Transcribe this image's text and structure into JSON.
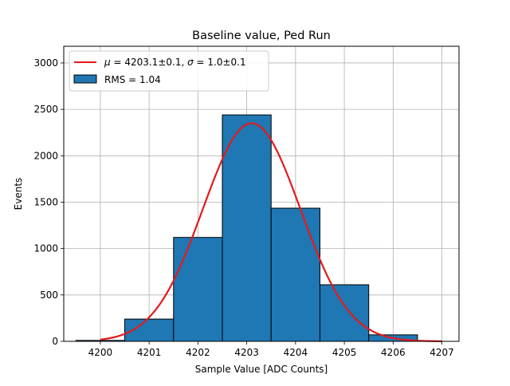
{
  "chart_data": {
    "type": "bar",
    "title": "Baseline value, Ped Run",
    "xlabel": "Sample Value [ADC Counts]",
    "ylabel": "Events",
    "xlim": [
      4199.25,
      4207.35
    ],
    "ylim": [
      0,
      3180
    ],
    "grid": true,
    "x_ticks": [
      4200,
      4201,
      4202,
      4203,
      4204,
      4205,
      4206,
      4207
    ],
    "y_ticks": [
      0,
      500,
      1000,
      1500,
      2000,
      2500,
      3000
    ],
    "bins": [
      {
        "left": 4199.5,
        "right": 4200.5,
        "value": 10
      },
      {
        "left": 4200.5,
        "right": 4201.5,
        "value": 240
      },
      {
        "left": 4201.5,
        "right": 4202.5,
        "value": 1120
      },
      {
        "left": 4202.5,
        "right": 4203.5,
        "value": 2440
      },
      {
        "left": 4203.5,
        "right": 4204.5,
        "value": 1435
      },
      {
        "left": 4204.5,
        "right": 4205.5,
        "value": 610
      },
      {
        "left": 4205.5,
        "right": 4206.5,
        "value": 70
      },
      {
        "left": 4206.5,
        "right": 4207.5,
        "value": 0
      }
    ],
    "bar_color": "#1f77b4",
    "fit": {
      "mu": 4203.1,
      "sigma": 1.0,
      "amplitude": 2350,
      "x_range": [
        4200,
        4207
      ],
      "color": "#e41a1c"
    },
    "legend": {
      "placement": "top-left",
      "entries": [
        {
          "kind": "line",
          "label_parts": [
            "μ",
            " = 4203.1±0.1, ",
            "σ",
            " = 1.0±0.1"
          ]
        },
        {
          "kind": "patch",
          "label": "RMS = 1.04"
        }
      ]
    }
  }
}
